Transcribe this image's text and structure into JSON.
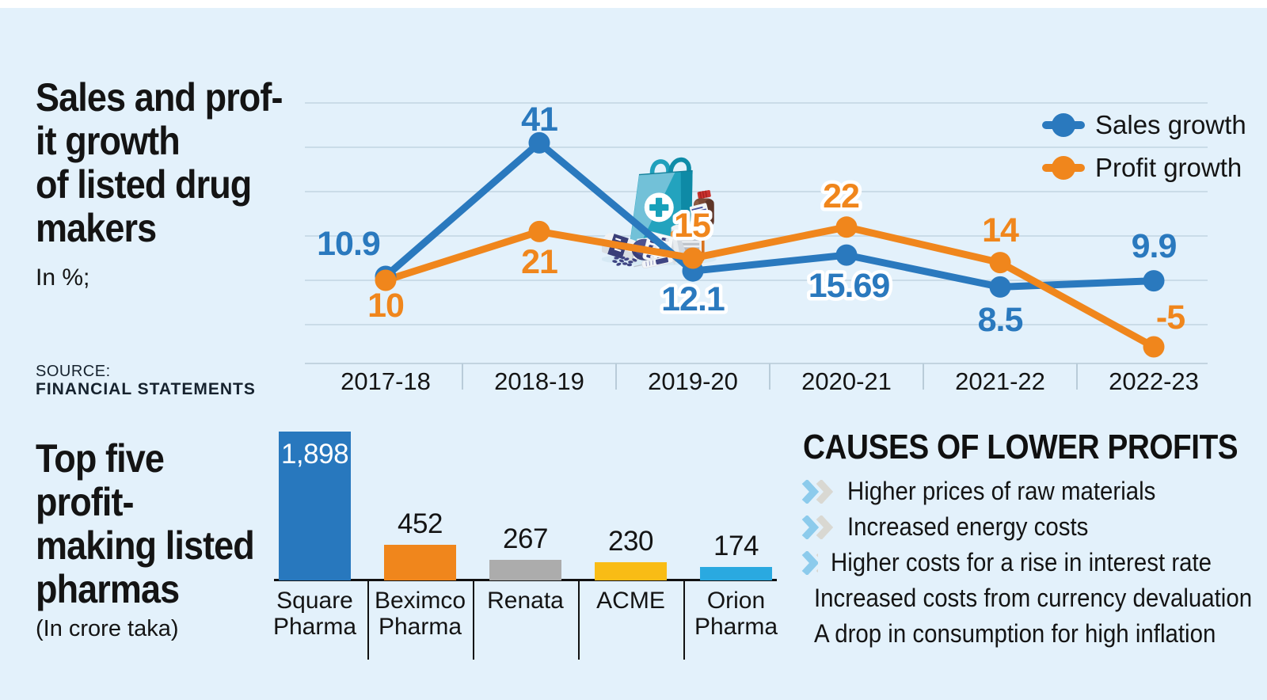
{
  "page": {
    "background": "#E3F1FB",
    "top_strip_color": "#FFFFFF"
  },
  "line_chart_section": {
    "title": "Sales and prof-\nit growth\nof listed drug\nmakers",
    "unit_label": "In %;",
    "source_label": "SOURCE:",
    "source_value": "FINANCIAL STATEMENTS"
  },
  "bar_chart_section": {
    "title": "Top five\nprofit-\nmaking listed\npharmas",
    "unit_label": "(In crore taka)"
  },
  "causes": {
    "heading": "CAUSES OF LOWER PROFITS",
    "chevron_colors": [
      "#8CCBEC",
      "#D9D8D2"
    ],
    "items": [
      "Higher prices of raw materials",
      "Increased energy costs",
      "Higher costs for a rise in interest rate",
      "Increased costs from currency devaluation",
      "A drop in consumption for high inflation"
    ]
  },
  "chart_data": [
    {
      "type": "line",
      "title": "Sales and profit growth of listed drug makers",
      "unit": "In %;",
      "categories": [
        "2017-18",
        "2018-19",
        "2019-20",
        "2020-21",
        "2021-22",
        "2022-23"
      ],
      "series": [
        {
          "name": "Sales growth",
          "color": "#2A79BE",
          "values": [
            10.9,
            41,
            12.1,
            15.69,
            8.5,
            9.9
          ],
          "labels": [
            "10.9",
            "41",
            "12.1",
            "15.69",
            "8.5",
            "9.9"
          ]
        },
        {
          "name": "Profit growth",
          "color": "#F0861C",
          "values": [
            10,
            21,
            15,
            22,
            14,
            -5
          ],
          "labels": [
            "10",
            "21",
            "15",
            "22",
            "14",
            "-5"
          ]
        }
      ],
      "ylim": [
        0,
        50
      ],
      "grid_step": 10,
      "grid": true,
      "legend_position": "top-right"
    },
    {
      "type": "bar",
      "title": "Top five profit-making listed pharmas",
      "unit": "(In crore taka)",
      "categories": [
        "Square\nPharma",
        "Beximco\nPharma",
        "Renata",
        "ACME",
        "Orion\nPharma"
      ],
      "values": [
        1898,
        452,
        267,
        230,
        174
      ],
      "display_values": [
        "1,898",
        "452",
        "267",
        "230",
        "174"
      ],
      "colors": [
        "#2878BE",
        "#F0861C",
        "#ACACAC",
        "#F9BC15",
        "#2AA9E0"
      ]
    }
  ]
}
